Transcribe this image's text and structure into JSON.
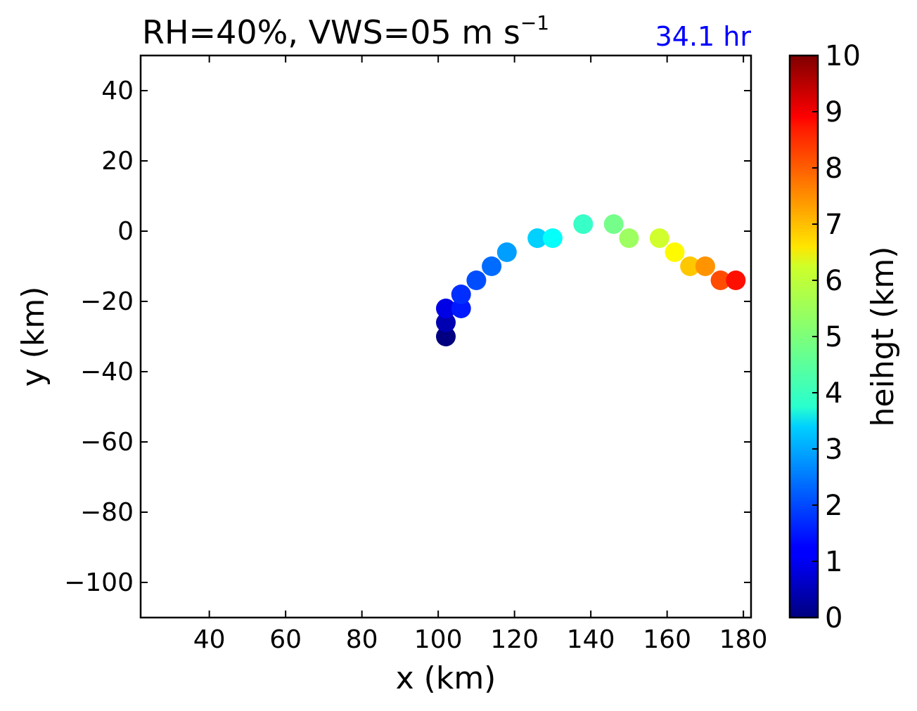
{
  "chart_data": {
    "type": "scatter",
    "title_main": "RH=40%, VWS=05 m s",
    "title_exponent": "−1",
    "time_label": "34.1 hr",
    "xlabel": "x (km)",
    "ylabel": "y (km)",
    "xlim": [
      22,
      182
    ],
    "ylim": [
      -110,
      50
    ],
    "xticks": [
      40,
      60,
      80,
      100,
      120,
      140,
      160,
      180
    ],
    "xtick_labels": [
      "40",
      "60",
      "80",
      "100",
      "120",
      "140",
      "160",
      "180"
    ],
    "yticks": [
      40,
      20,
      0,
      -20,
      -40,
      -60,
      -80,
      -100
    ],
    "ytick_labels": [
      "40",
      "20",
      "0",
      "−20",
      "−40",
      "−60",
      "−80",
      "−100"
    ],
    "points": [
      {
        "x": 102,
        "y": -30,
        "height": 0.0
      },
      {
        "x": 102,
        "y": -26,
        "height": 0.5
      },
      {
        "x": 102,
        "y": -22,
        "height": 1.0
      },
      {
        "x": 106,
        "y": -22,
        "height": 1.5
      },
      {
        "x": 106,
        "y": -18,
        "height": 1.7
      },
      {
        "x": 110,
        "y": -14,
        "height": 2.0
      },
      {
        "x": 114,
        "y": -10,
        "height": 2.3
      },
      {
        "x": 118,
        "y": -6,
        "height": 2.8
      },
      {
        "x": 126,
        "y": -2,
        "height": 3.3
      },
      {
        "x": 130,
        "y": -2,
        "height": 3.8
      },
      {
        "x": 138,
        "y": 2,
        "height": 4.3
      },
      {
        "x": 146,
        "y": 2,
        "height": 4.9
      },
      {
        "x": 150,
        "y": -2,
        "height": 5.3
      },
      {
        "x": 158,
        "y": -2,
        "height": 5.8
      },
      {
        "x": 162,
        "y": -6,
        "height": 6.3
      },
      {
        "x": 166,
        "y": -10,
        "height": 6.8
      },
      {
        "x": 170,
        "y": -10,
        "height": 7.3
      },
      {
        "x": 174,
        "y": -14,
        "height": 8.0
      },
      {
        "x": 178,
        "y": -14,
        "height": 8.6
      }
    ],
    "colorbar": {
      "label": "heihgt (km)",
      "min": 0,
      "max": 10,
      "ticks": [
        0,
        1,
        2,
        3,
        4,
        5,
        6,
        7,
        8,
        9,
        10
      ],
      "tick_labels": [
        "0",
        "1",
        "2",
        "3",
        "4",
        "5",
        "6",
        "7",
        "8",
        "9",
        "10"
      ],
      "colormap": "jet"
    },
    "grid": false
  }
}
